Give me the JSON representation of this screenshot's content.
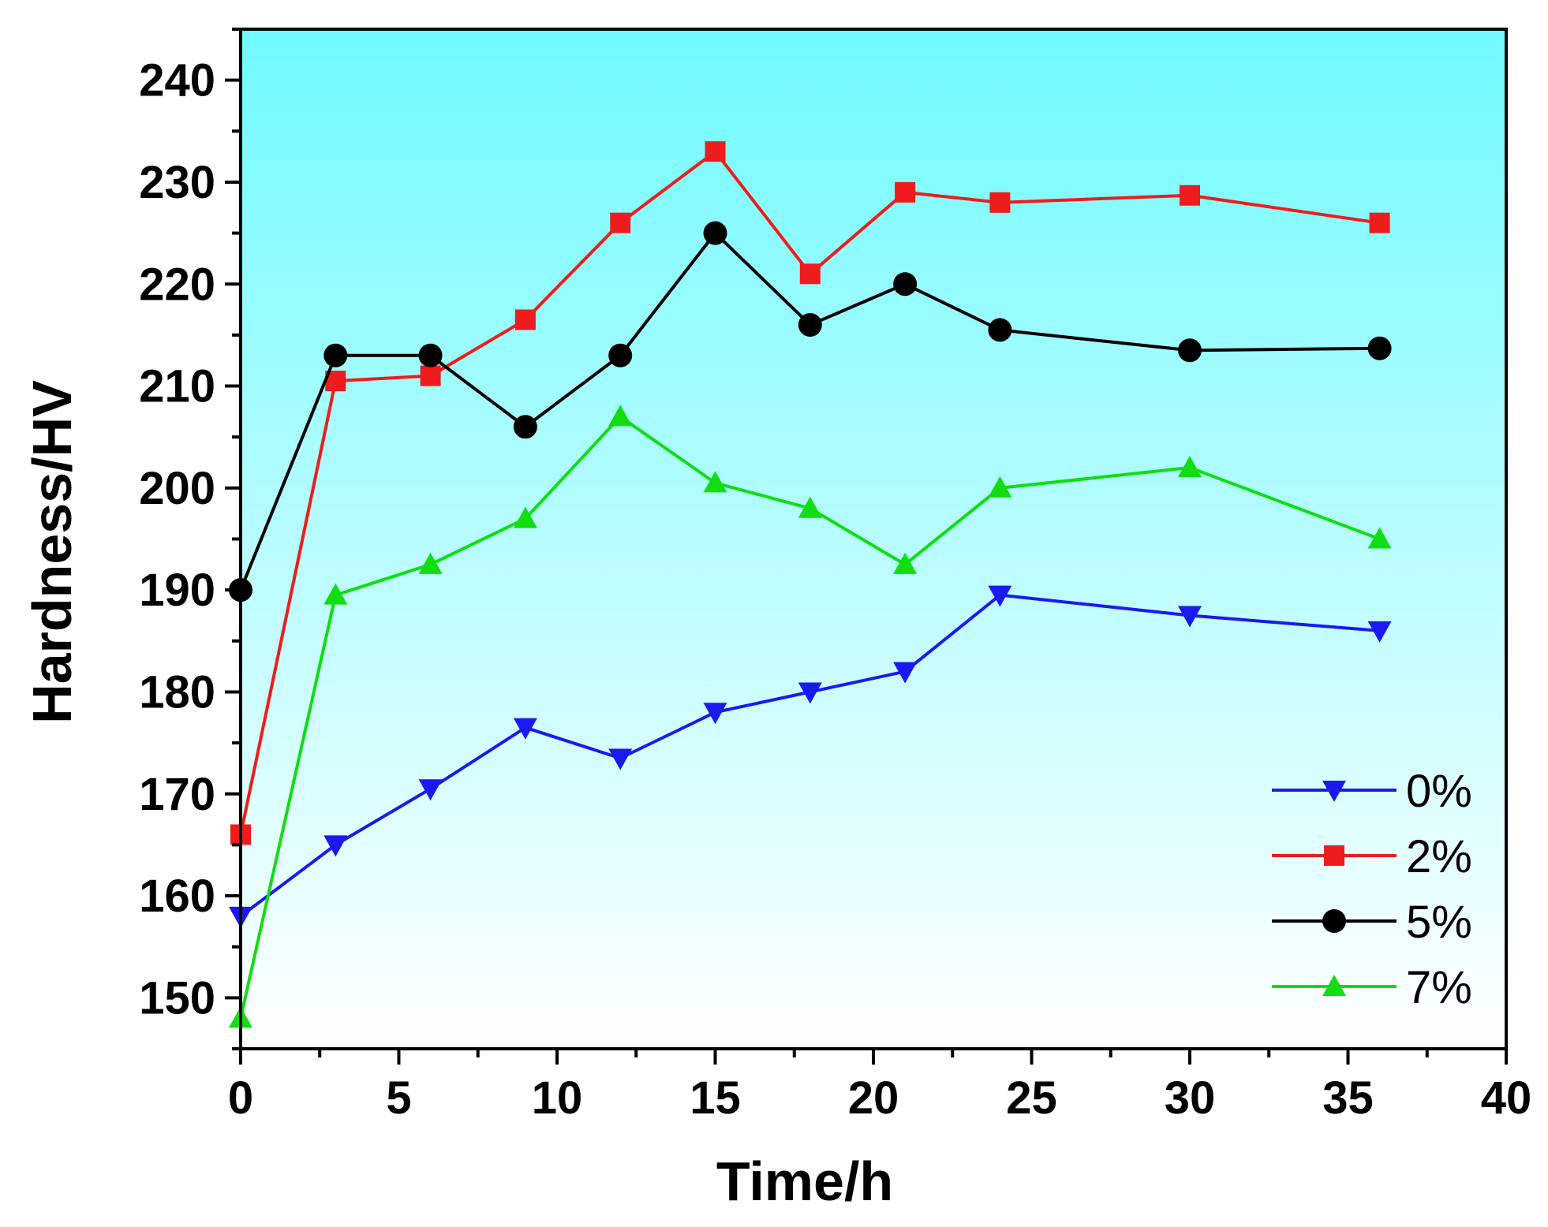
{
  "chart_data": {
    "type": "line",
    "title": "",
    "xlabel": "Time/h",
    "ylabel": "Hardness/HV",
    "xlim": [
      0,
      40
    ],
    "ylim": [
      145,
      245
    ],
    "xticks": [
      0,
      5,
      10,
      15,
      20,
      25,
      30,
      35,
      40
    ],
    "xtick_labels": [
      "0",
      "5",
      "10",
      "15",
      "20",
      "25",
      "30",
      "35",
      "40"
    ],
    "yticks": [
      150,
      160,
      170,
      180,
      190,
      200,
      210,
      220,
      230,
      240
    ],
    "ytick_labels": [
      "150",
      "160",
      "170",
      "180",
      "190",
      "200",
      "210",
      "220",
      "230",
      "240"
    ],
    "grid": false,
    "legend_position": "bottom-right",
    "background_gradient": [
      "#6ffaff",
      "#ffffff"
    ],
    "x": [
      0,
      3,
      6,
      9,
      12,
      15,
      18,
      21,
      24,
      30,
      36
    ],
    "series": [
      {
        "name": "0%",
        "color": "#1a1aee",
        "marker": "triangle-down",
        "values": [
          158,
          165,
          170.5,
          176.5,
          173.5,
          178,
          180,
          182,
          189.5,
          187.5,
          186
        ]
      },
      {
        "name": "2%",
        "color": "#ee1c1c",
        "marker": "square",
        "values": [
          166,
          210.5,
          211,
          216.5,
          226,
          233,
          221,
          229,
          228,
          228.7,
          226
        ]
      },
      {
        "name": "5%",
        "color": "#000000",
        "marker": "circle",
        "values": [
          190,
          213,
          213,
          206,
          213,
          225,
          216,
          220,
          215.5,
          213.5,
          213.7
        ]
      },
      {
        "name": "7%",
        "color": "#11dd11",
        "marker": "triangle-up",
        "values": [
          148,
          189.5,
          192.5,
          197,
          207,
          200.5,
          198,
          192.5,
          200,
          202,
          195
        ]
      }
    ]
  }
}
